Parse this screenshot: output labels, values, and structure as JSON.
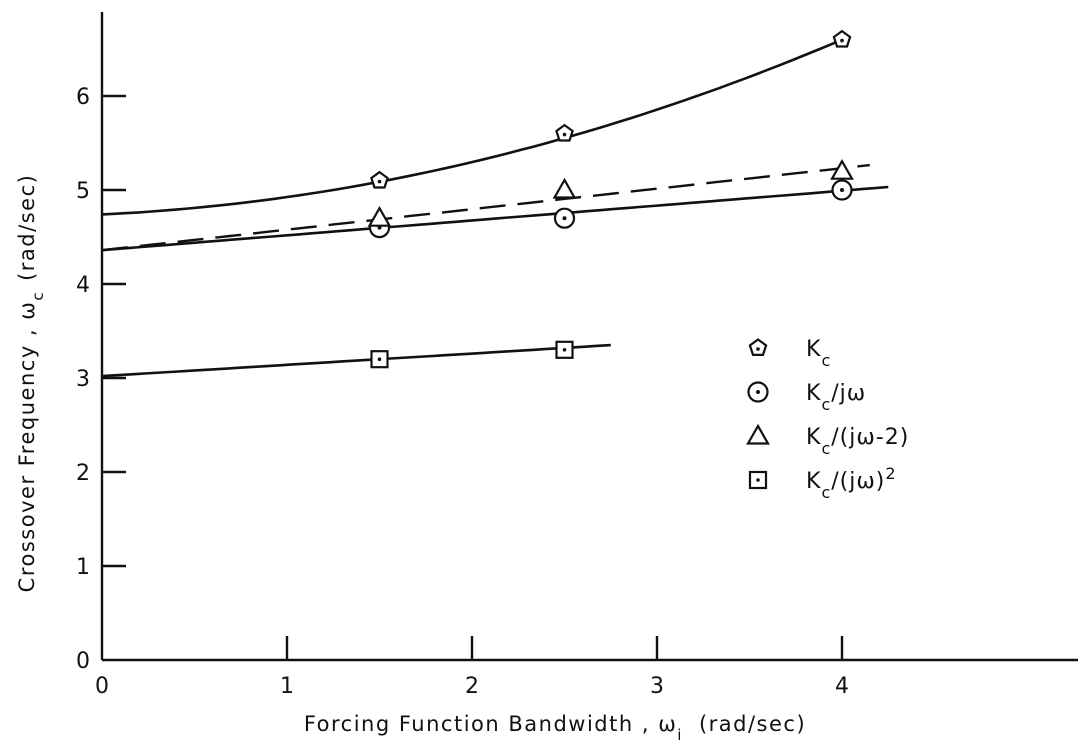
{
  "chart_data": {
    "type": "scatter",
    "title": "",
    "xlabel": "Forcing Function Bandwidth , ω",
    "xlabel_sub": "i",
    "xlabel_unit": "(rad/sec)",
    "ylabel": "Crossover Frequency , ω",
    "ylabel_sub": "c",
    "ylabel_unit": "(rad/sec)",
    "xlim": [
      0,
      5.25
    ],
    "ylim": [
      0,
      6.9
    ],
    "xticks": [
      0,
      1,
      2,
      3,
      4
    ],
    "yticks": [
      0,
      1,
      2,
      3,
      4,
      5,
      6
    ],
    "grid": false,
    "legend_position": "right",
    "series": [
      {
        "name": "K_c",
        "legend_main": "K",
        "legend_sub": "c",
        "legend_tail": "",
        "legend_sup": "",
        "marker": "pentagon-dot",
        "line_style": "solid",
        "x": [
          1.5,
          2.5,
          4.0
        ],
        "y": [
          5.1,
          5.6,
          6.6
        ],
        "fit": {
          "kind": "quadratic",
          "coef": [
            4.74,
            0.0917,
            0.0933
          ],
          "x_range": [
            0,
            4.0
          ]
        }
      },
      {
        "name": "K_c/jω",
        "legend_main": "K",
        "legend_sub": "c",
        "legend_tail": "/jω",
        "legend_sup": "",
        "marker": "circle-dot",
        "line_style": "solid",
        "x": [
          1.5,
          2.5,
          4.0
        ],
        "y": [
          4.6,
          4.7,
          5.0
        ],
        "fit": {
          "kind": "linear",
          "coef": [
            4.36,
            0.158
          ],
          "x_range": [
            0,
            4.25
          ]
        }
      },
      {
        "name": "K_c/(jω-2)",
        "legend_main": "K",
        "legend_sub": "c",
        "legend_tail": "/(jω-2)",
        "legend_sup": "",
        "marker": "triangle",
        "line_style": "dashed",
        "x": [
          1.5,
          2.5,
          4.0
        ],
        "y": [
          4.7,
          5.0,
          5.2
        ],
        "fit": {
          "kind": "linear",
          "coef": [
            4.36,
            0.218
          ],
          "x_range": [
            0,
            4.15
          ]
        }
      },
      {
        "name": "K_c/(jω)^2",
        "legend_main": "K",
        "legend_sub": "c",
        "legend_tail": "/(jω)",
        "legend_sup": "2",
        "marker": "square-dot",
        "line_style": "solid",
        "x": [
          1.5,
          2.5
        ],
        "y": [
          3.2,
          3.3
        ],
        "fit": {
          "kind": "linear",
          "coef": [
            3.02,
            0.12
          ],
          "x_range": [
            0,
            2.75
          ]
        }
      }
    ]
  }
}
